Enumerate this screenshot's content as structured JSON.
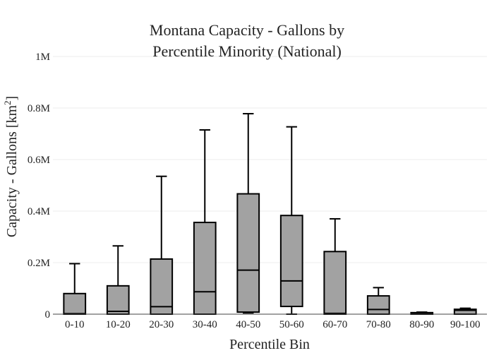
{
  "chart_data": {
    "type": "box",
    "title_lines": [
      "Montana Capacity - Gallons by",
      "Percentile Minority (National)"
    ],
    "xlabel": "Percentile Bin",
    "ylabel_prefix": "Capacity - Gallons  [km",
    "ylabel_sup": "2",
    "ylabel_suffix": "]",
    "ylim": [
      0,
      1000000
    ],
    "yticks": [
      {
        "value": 0,
        "label": "0"
      },
      {
        "value": 200000,
        "label": "0.2M"
      },
      {
        "value": 400000,
        "label": "0.4M"
      },
      {
        "value": 600000,
        "label": "0.6M"
      },
      {
        "value": 800000,
        "label": "0.8M"
      },
      {
        "value": 1000000,
        "label": "1M"
      }
    ],
    "grid": true,
    "categories": [
      "0-10",
      "10-20",
      "20-30",
      "30-40",
      "40-50",
      "50-60",
      "60-70",
      "70-80",
      "80-90",
      "90-100"
    ],
    "boxes": [
      {
        "min": 0,
        "q1": 0,
        "median": 2000,
        "q3": 80000,
        "max": 196000
      },
      {
        "min": 0,
        "q1": 0,
        "median": 11000,
        "q3": 110000,
        "max": 265000
      },
      {
        "min": 0,
        "q1": 0,
        "median": 29000,
        "q3": 214000,
        "max": 535000
      },
      {
        "min": 0,
        "q1": 0,
        "median": 87000,
        "q3": 356000,
        "max": 715000
      },
      {
        "min": 5000,
        "q1": 8000,
        "median": 171000,
        "q3": 467000,
        "max": 778000
      },
      {
        "min": 0,
        "q1": 30000,
        "median": 129000,
        "q3": 383000,
        "max": 727000
      },
      {
        "min": 0,
        "q1": 0,
        "median": 3000,
        "q3": 243000,
        "max": 370000
      },
      {
        "min": 0,
        "q1": 0,
        "median": 18000,
        "q3": 71000,
        "max": 103000
      },
      {
        "min": 0,
        "q1": 0,
        "median": 2000,
        "q3": 6000,
        "max": 8000
      },
      {
        "min": 0,
        "q1": 0,
        "median": 15000,
        "q3": 19000,
        "max": 23000
      }
    ]
  }
}
